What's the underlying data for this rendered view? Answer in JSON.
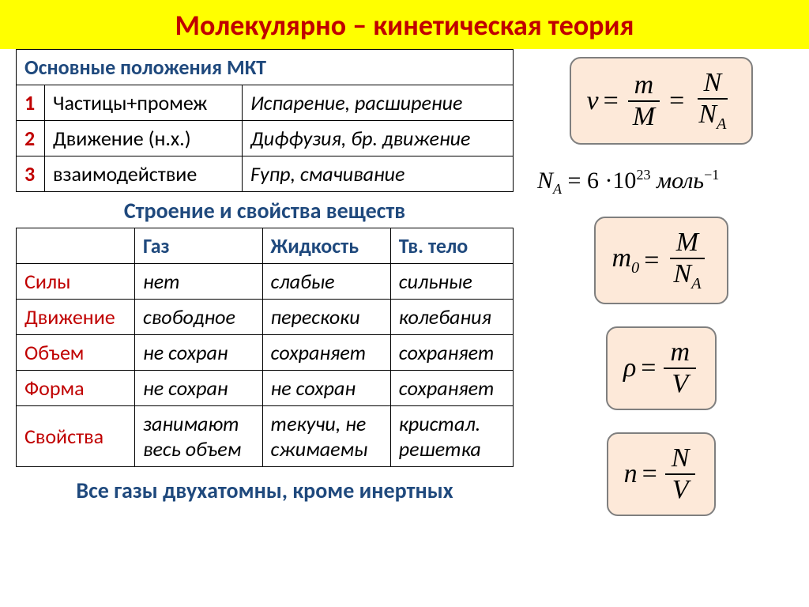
{
  "title": "Молекулярно – кинетическая теория",
  "colors": {
    "title_bg": "#ffff00",
    "title_text": "#c00000",
    "heading": "#1f497d",
    "row_number": "#c00000",
    "row_label": "#c00000",
    "formula_bg": "#fde9d9",
    "formula_border": "#7f7f7f",
    "page_bg": "#ffffff",
    "border": "#000000"
  },
  "mkt": {
    "header": "Основные положения МКТ",
    "rows": [
      {
        "n": "1",
        "name": "Частицы+промеж",
        "example": "Испарение, расширение"
      },
      {
        "n": "2",
        "name": "Движение (н.х.)",
        "example": "Диффузия, бр. движение"
      },
      {
        "n": "3",
        "name": "взаимодействие",
        "example": "Fупр, смачивание"
      }
    ]
  },
  "structure": {
    "header": "Строение и свойства веществ",
    "columns": [
      "",
      "Газ",
      "Жидкость",
      "Тв. тело"
    ],
    "rows": [
      {
        "label": "Силы",
        "cells": [
          "нет",
          "слабые",
          "сильные"
        ]
      },
      {
        "label": "Движение",
        "cells": [
          "свободное",
          "перескоки",
          "колебания"
        ]
      },
      {
        "label": "Объем",
        "cells": [
          "не сохран",
          "сохраняет",
          "сохраняет"
        ]
      },
      {
        "label": "Форма",
        "cells": [
          "не сохран",
          "не сохран",
          "сохраняет"
        ]
      },
      {
        "label": "Свойства",
        "cells": [
          "занимают весь объем",
          "текучи, не сжимаемы",
          "кристал. решетка"
        ]
      }
    ]
  },
  "footnote": "Все газы двухатомны, кроме инертных",
  "formulas": {
    "nu": {
      "lhs": "ν",
      "frac1_num": "m",
      "frac1_den": "M",
      "frac2_num": "N",
      "frac2_den": "N",
      "frac2_den_sub": "A"
    },
    "avogadro": {
      "sym": "N",
      "sub": "A",
      "val_base": "6 ·10",
      "val_exp": "23",
      "unit": "моль",
      "unit_exp": "−1"
    },
    "m0": {
      "lhs": "m",
      "lhs_sub": "0",
      "num": "M",
      "den": "N",
      "den_sub": "A"
    },
    "rho": {
      "lhs": "ρ",
      "num": "m",
      "den": "V"
    },
    "n": {
      "lhs": "n",
      "num": "N",
      "den": "V"
    }
  }
}
